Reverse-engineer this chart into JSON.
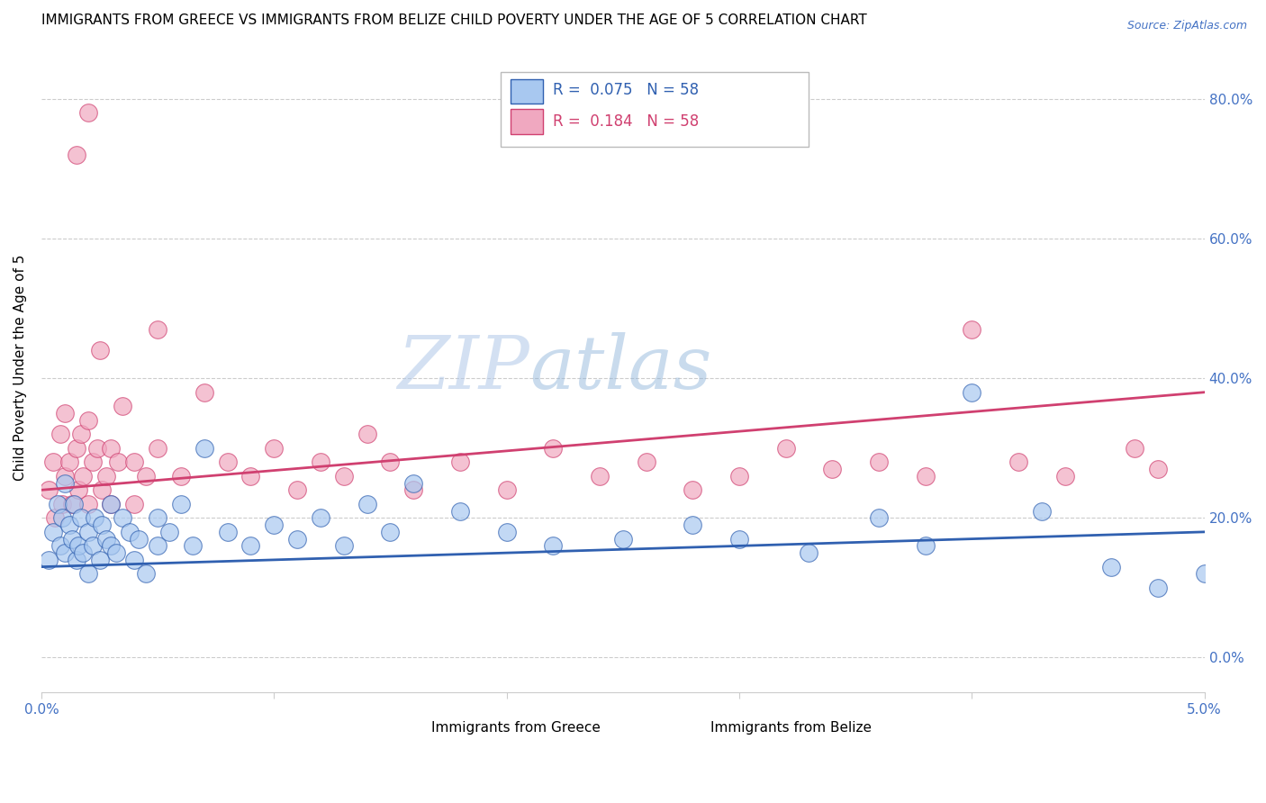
{
  "title": "IMMIGRANTS FROM GREECE VS IMMIGRANTS FROM BELIZE CHILD POVERTY UNDER THE AGE OF 5 CORRELATION CHART",
  "source": "Source: ZipAtlas.com",
  "ylabel": "Child Poverty Under the Age of 5",
  "xlim": [
    0.0,
    0.05
  ],
  "ylim": [
    -0.05,
    0.88
  ],
  "xtick_vals": [
    0.0,
    0.01,
    0.02,
    0.03,
    0.04,
    0.05
  ],
  "xtick_labels": [
    "0.0%",
    "",
    "",
    "",
    "",
    "5.0%"
  ],
  "ytick_vals": [
    0.0,
    0.2,
    0.4,
    0.6,
    0.8
  ],
  "ytick_labels": [
    "0.0%",
    "20.0%",
    "40.0%",
    "60.0%",
    "80.0%"
  ],
  "greece_R": 0.075,
  "greece_N": 58,
  "belize_R": 0.184,
  "belize_N": 58,
  "greece_color": "#A8C8F0",
  "belize_color": "#F0A8C0",
  "greece_line_color": "#3060B0",
  "belize_line_color": "#D04070",
  "legend_label_greece": "Immigrants from Greece",
  "legend_label_belize": "Immigrants from Belize",
  "watermark_zip": "ZIP",
  "watermark_atlas": "atlas",
  "title_fontsize": 11,
  "axis_label_fontsize": 11,
  "tick_fontsize": 11,
  "right_tick_color": "#4472C4",
  "greece_line_intercept": 0.13,
  "greece_line_slope": 1.0,
  "belize_line_intercept": 0.24,
  "belize_line_slope": 2.8,
  "greece_scatter_x": [
    0.0003,
    0.0005,
    0.0007,
    0.0008,
    0.0009,
    0.001,
    0.001,
    0.0012,
    0.0013,
    0.0014,
    0.0015,
    0.0016,
    0.0017,
    0.0018,
    0.002,
    0.002,
    0.0022,
    0.0023,
    0.0025,
    0.0026,
    0.0028,
    0.003,
    0.003,
    0.0032,
    0.0035,
    0.0038,
    0.004,
    0.0042,
    0.0045,
    0.005,
    0.005,
    0.0055,
    0.006,
    0.0065,
    0.007,
    0.008,
    0.009,
    0.01,
    0.011,
    0.012,
    0.013,
    0.014,
    0.015,
    0.016,
    0.018,
    0.02,
    0.022,
    0.025,
    0.028,
    0.03,
    0.033,
    0.036,
    0.038,
    0.04,
    0.043,
    0.046,
    0.048,
    0.05
  ],
  "greece_scatter_y": [
    0.14,
    0.18,
    0.22,
    0.16,
    0.2,
    0.25,
    0.15,
    0.19,
    0.17,
    0.22,
    0.14,
    0.16,
    0.2,
    0.15,
    0.18,
    0.12,
    0.16,
    0.2,
    0.14,
    0.19,
    0.17,
    0.22,
    0.16,
    0.15,
    0.2,
    0.18,
    0.14,
    0.17,
    0.12,
    0.16,
    0.2,
    0.18,
    0.22,
    0.16,
    0.3,
    0.18,
    0.16,
    0.19,
    0.17,
    0.2,
    0.16,
    0.22,
    0.18,
    0.25,
    0.21,
    0.18,
    0.16,
    0.17,
    0.19,
    0.17,
    0.15,
    0.2,
    0.16,
    0.38,
    0.21,
    0.13,
    0.1,
    0.12
  ],
  "belize_scatter_x": [
    0.0003,
    0.0005,
    0.0006,
    0.0008,
    0.0009,
    0.001,
    0.001,
    0.0012,
    0.0013,
    0.0015,
    0.0016,
    0.0017,
    0.0018,
    0.002,
    0.002,
    0.0022,
    0.0024,
    0.0026,
    0.0028,
    0.003,
    0.003,
    0.0033,
    0.0035,
    0.004,
    0.004,
    0.0045,
    0.005,
    0.006,
    0.007,
    0.008,
    0.009,
    0.01,
    0.011,
    0.012,
    0.013,
    0.014,
    0.015,
    0.016,
    0.018,
    0.02,
    0.022,
    0.024,
    0.026,
    0.028,
    0.03,
    0.032,
    0.034,
    0.036,
    0.038,
    0.04,
    0.042,
    0.044,
    0.047,
    0.048,
    0.0015,
    0.002,
    0.0025,
    0.005
  ],
  "belize_scatter_y": [
    0.24,
    0.28,
    0.2,
    0.32,
    0.22,
    0.35,
    0.26,
    0.28,
    0.22,
    0.3,
    0.24,
    0.32,
    0.26,
    0.34,
    0.22,
    0.28,
    0.3,
    0.24,
    0.26,
    0.3,
    0.22,
    0.28,
    0.36,
    0.28,
    0.22,
    0.26,
    0.3,
    0.26,
    0.38,
    0.28,
    0.26,
    0.3,
    0.24,
    0.28,
    0.26,
    0.32,
    0.28,
    0.24,
    0.28,
    0.24,
    0.3,
    0.26,
    0.28,
    0.24,
    0.26,
    0.3,
    0.27,
    0.28,
    0.26,
    0.47,
    0.28,
    0.26,
    0.3,
    0.27,
    0.72,
    0.78,
    0.44,
    0.47
  ]
}
